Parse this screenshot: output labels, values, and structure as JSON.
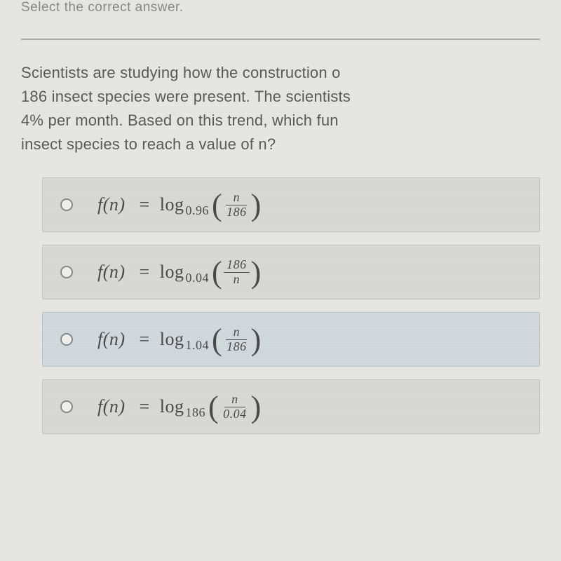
{
  "instruction_partial": "Select the correct answer.",
  "question": {
    "line1": "Scientists are studying how the construction o",
    "line2": "186 insect species were present. The scientists",
    "line3": "4% per month. Based on this trend, which fun",
    "line4": "insect species to reach a value of n?"
  },
  "options": [
    {
      "selected": false,
      "fn_label": "f(n)",
      "log_label": "log",
      "base": "0.96",
      "numerator": "n",
      "denominator": "186"
    },
    {
      "selected": false,
      "fn_label": "f(n)",
      "log_label": "log",
      "base": "0.04",
      "numerator": "186",
      "denominator": "n"
    },
    {
      "selected": true,
      "fn_label": "f(n)",
      "log_label": "log",
      "base": "1.04",
      "numerator": "n",
      "denominator": "186"
    },
    {
      "selected": false,
      "fn_label": "f(n)",
      "log_label": "log",
      "base": "186",
      "numerator": "n",
      "denominator": "0.04"
    }
  ],
  "colors": {
    "background": "#e8e6e0",
    "option_bg": "#d8d8d4",
    "option_selected_bg": "#cfd9de",
    "text_primary": "#5a5a5a",
    "text_faded": "#888",
    "formula_text": "#4a4a4a"
  },
  "typography": {
    "body_fontsize": 22,
    "formula_fontsize": 26,
    "base_fontsize": 18,
    "fraction_fontsize": 18
  }
}
